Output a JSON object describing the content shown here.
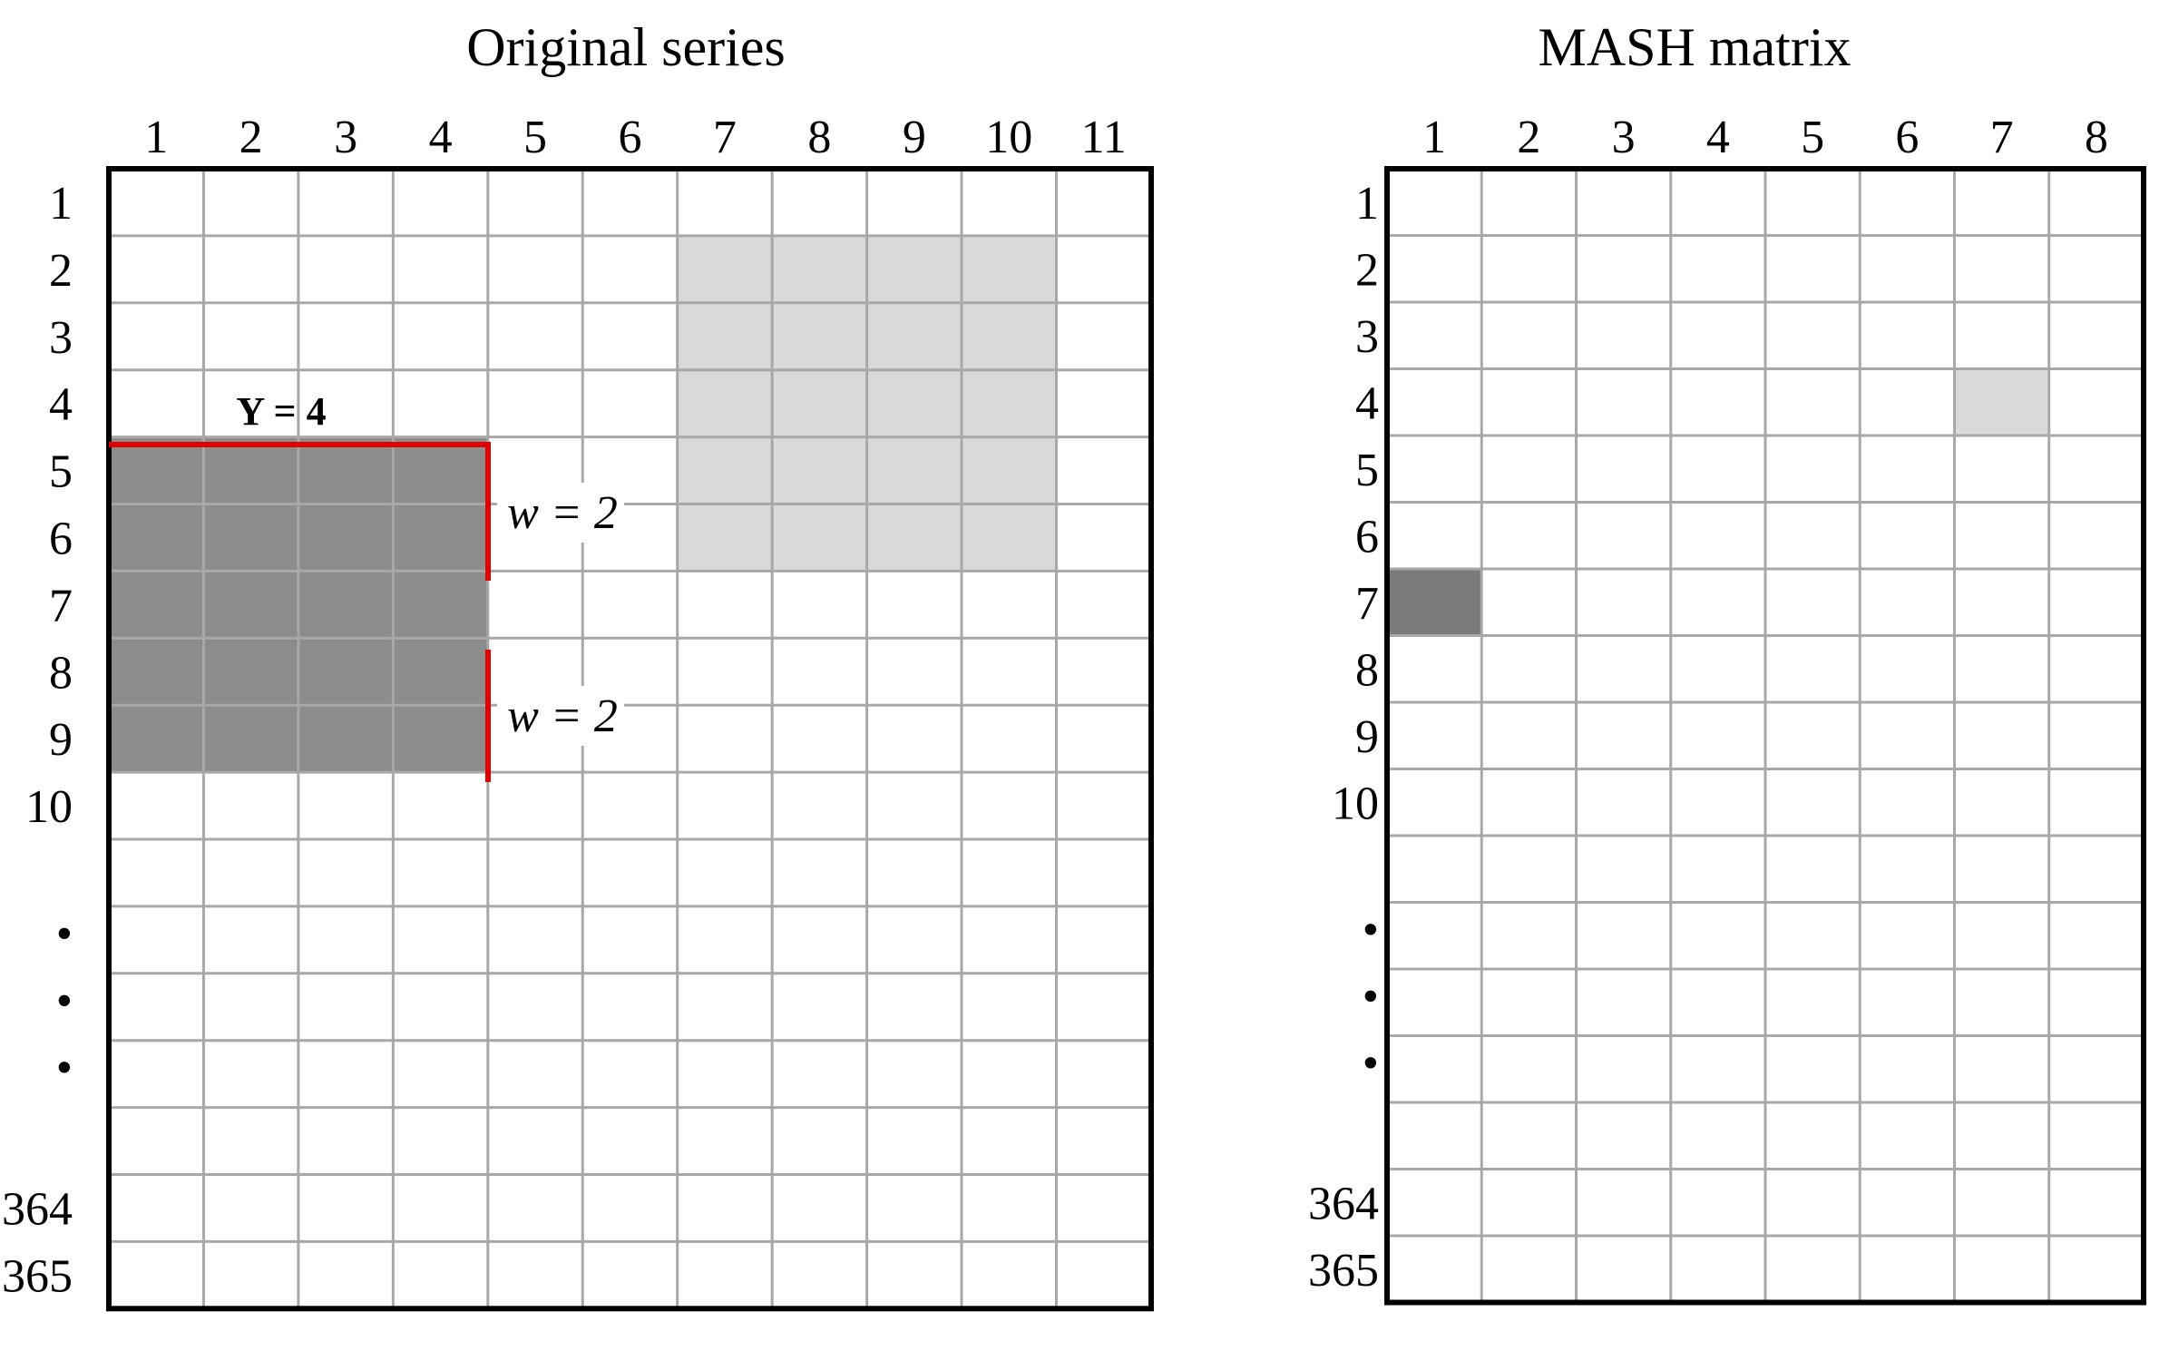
{
  "colors": {
    "grid": "#a8a8a8",
    "frame": "#000000",
    "dark_cell": "#8c8c8c",
    "light_cell": "#d9d9d9",
    "mash_dark_cell": "#7a7a7a",
    "highlight_line": "#e00000",
    "background": "#ffffff"
  },
  "original_series": {
    "title": "Original series",
    "column_labels": [
      "1",
      "2",
      "3",
      "4",
      "5",
      "6",
      "7",
      "8",
      "9",
      "10",
      "11"
    ],
    "row_labels": [
      "1",
      "2",
      "3",
      "4",
      "5",
      "6",
      "7",
      "8",
      "9",
      "10",
      "",
      "•",
      "•",
      "•",
      "",
      "364",
      "365"
    ],
    "dark_block": {
      "rows": [
        5,
        9
      ],
      "cols": [
        1,
        4
      ]
    },
    "light_block": {
      "rows": [
        2,
        6
      ],
      "cols": [
        7,
        10
      ]
    },
    "annotations": {
      "y_label": "Y = 4",
      "w_upper": "w = 2",
      "w_lower": "w = 2"
    }
  },
  "mash_matrix": {
    "title": "MASH matrix",
    "column_labels": [
      "1",
      "2",
      "3",
      "4",
      "5",
      "6",
      "7",
      "8"
    ],
    "row_labels": [
      "1",
      "2",
      "3",
      "4",
      "5",
      "6",
      "7",
      "8",
      "9",
      "10",
      "",
      "•",
      "•",
      "•",
      "",
      "364",
      "365"
    ],
    "dark_cell": {
      "row": 7,
      "col": 1
    },
    "light_cell": {
      "row": 4,
      "col": 7
    }
  }
}
